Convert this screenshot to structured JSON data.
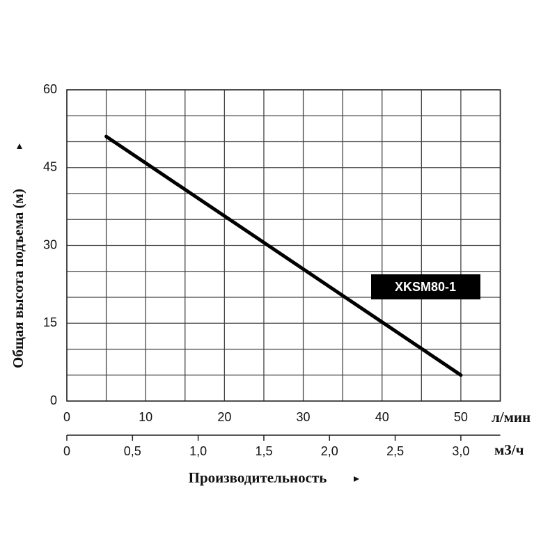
{
  "chart_data": {
    "type": "line",
    "xlabel": "Производительность",
    "ylabel": "Общая высота подъема (м)",
    "x_unit": "л/мин",
    "x2_unit": "м3/ч",
    "xlim": [
      0,
      55
    ],
    "xticks": [
      0,
      10,
      20,
      30,
      40,
      50
    ],
    "ylim": [
      0,
      60
    ],
    "yticks": [
      0,
      15,
      30,
      45,
      60
    ],
    "x2lim": [
      0,
      3.3
    ],
    "x2ticks": [
      0,
      {
        "value": 0.5,
        "label": "0,5"
      },
      {
        "value": 1,
        "label": "1,0"
      },
      {
        "value": 1.5,
        "label": "1,5"
      },
      {
        "value": 2,
        "label": "2,0"
      },
      {
        "value": 2.5,
        "label": "2,5"
      },
      {
        "value": 3,
        "label": "3,0"
      }
    ],
    "grid": true,
    "grid_step_x": 5,
    "grid_step_y": 5,
    "series": [
      {
        "name": "XKSM80-1",
        "color": "#000000",
        "x": [
          5,
          50
        ],
        "values": [
          51,
          5
        ]
      }
    ]
  }
}
